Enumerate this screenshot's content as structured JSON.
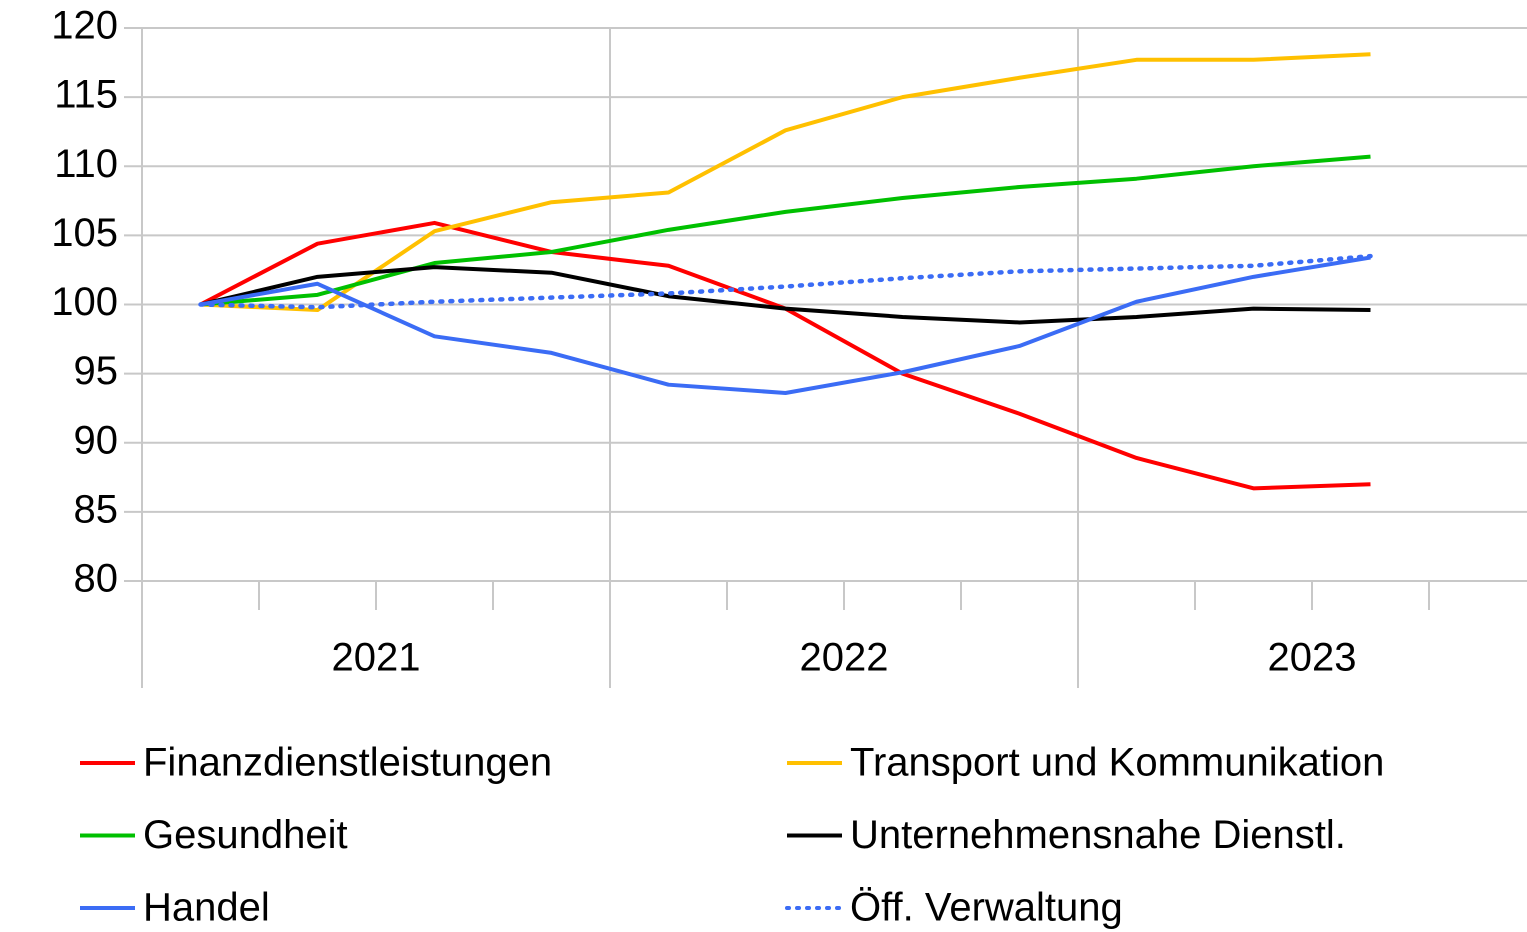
{
  "chart_data": {
    "type": "line",
    "categories": [
      null,
      null,
      null,
      null,
      null,
      null,
      null,
      null,
      null,
      null,
      null
    ],
    "year_labels": [
      "2021",
      "2022",
      "2023"
    ],
    "ylim": [
      80,
      120
    ],
    "yticks": [
      80,
      85,
      90,
      95,
      100,
      105,
      110,
      115,
      120
    ],
    "grid": true,
    "series": [
      {
        "name": "Finanzdienstleistungen",
        "color": "#ff0000",
        "values": [
          100,
          104.4,
          105.9,
          103.8,
          102.8,
          99.7,
          95.0,
          92.1,
          88.9,
          86.7,
          87.0
        ]
      },
      {
        "name": "Transport und Kommunikation",
        "color": "#ffc000",
        "values": [
          100,
          99.6,
          105.3,
          107.4,
          108.1,
          112.6,
          115.0,
          116.4,
          117.7,
          117.7,
          118.1
        ]
      },
      {
        "name": "Gesundheit",
        "color": "#00c000",
        "values": [
          100,
          100.7,
          103.0,
          103.8,
          105.4,
          106.7,
          107.7,
          108.5,
          109.1,
          110.0,
          110.7
        ]
      },
      {
        "name": "Unternehmensnahe Dienstl.",
        "color": "#000000",
        "values": [
          100,
          102.0,
          102.7,
          102.3,
          100.6,
          99.7,
          99.1,
          98.7,
          99.1,
          99.7,
          99.6
        ]
      },
      {
        "name": "Handel",
        "color": "#3b6cf5",
        "values": [
          100,
          101.5,
          97.7,
          96.5,
          94.2,
          93.6,
          95.1,
          97.0,
          100.2,
          102.0,
          103.4
        ]
      },
      {
        "name": "Öff. Verwaltung",
        "color": "#3b6cf5",
        "style": "dotted",
        "values": [
          100,
          99.8,
          100.2,
          100.5,
          100.8,
          101.3,
          101.9,
          102.4,
          102.6,
          102.8,
          103.5
        ]
      }
    ]
  }
}
